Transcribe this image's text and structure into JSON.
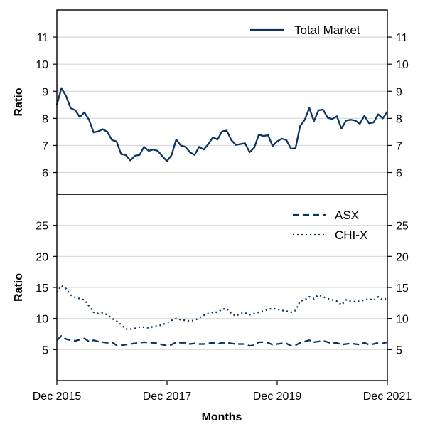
{
  "chart_data": {
    "type": "line",
    "xlabel": "Months",
    "x_ticks": [
      "Dec 2015",
      "Dec 2017",
      "Dec 2019",
      "Dec 2021"
    ],
    "x_months": [
      "Dec 2015",
      "Jan 2016",
      "Feb 2016",
      "Mar 2016",
      "Apr 2016",
      "May 2016",
      "Jun 2016",
      "Jul 2016",
      "Aug 2016",
      "Sep 2016",
      "Oct 2016",
      "Nov 2016",
      "Dec 2016",
      "Jan 2017",
      "Feb 2017",
      "Mar 2017",
      "Apr 2017",
      "May 2017",
      "Jun 2017",
      "Jul 2017",
      "Aug 2017",
      "Sep 2017",
      "Oct 2017",
      "Nov 2017",
      "Dec 2017",
      "Jan 2018",
      "Feb 2018",
      "Mar 2018",
      "Apr 2018",
      "May 2018",
      "Jun 2018",
      "Jul 2018",
      "Aug 2018",
      "Sep 2018",
      "Oct 2018",
      "Nov 2018",
      "Dec 2018",
      "Jan 2019",
      "Feb 2019",
      "Mar 2019",
      "Apr 2019",
      "May 2019",
      "Jun 2019",
      "Jul 2019",
      "Aug 2019",
      "Sep 2019",
      "Oct 2019",
      "Nov 2019",
      "Dec 2019",
      "Jan 2020",
      "Feb 2020",
      "Mar 2020",
      "Apr 2020",
      "May 2020",
      "Jun 2020",
      "Jul 2020",
      "Aug 2020",
      "Sep 2020",
      "Oct 2020",
      "Nov 2020",
      "Dec 2020",
      "Jan 2021",
      "Feb 2021",
      "Mar 2021",
      "Apr 2021",
      "May 2021",
      "Jun 2021",
      "Jul 2021",
      "Aug 2021",
      "Sep 2021",
      "Oct 2021",
      "Nov 2021",
      "Dec 2021"
    ],
    "grid": "horizontal",
    "panels": [
      {
        "ylabel": "Ratio",
        "ylim": [
          5.2,
          12
        ],
        "yticks": [
          6,
          7,
          8,
          9,
          10,
          11
        ],
        "legend_position": "top-right",
        "series": [
          {
            "name": "Total Market",
            "style": "solid",
            "color": "#0a3560",
            "values": [
              8.5,
              9.12,
              8.82,
              8.38,
              8.3,
              8.05,
              8.22,
              7.95,
              7.48,
              7.52,
              7.6,
              7.5,
              7.2,
              7.15,
              6.68,
              6.65,
              6.45,
              6.62,
              6.65,
              6.95,
              6.8,
              6.85,
              6.8,
              6.6,
              6.42,
              6.65,
              7.22,
              7.0,
              6.95,
              6.75,
              6.65,
              6.95,
              6.85,
              7.05,
              7.3,
              7.22,
              7.52,
              7.55,
              7.2,
              7.02,
              7.05,
              7.08,
              6.75,
              6.92,
              7.4,
              7.35,
              7.38,
              6.98,
              7.15,
              7.25,
              7.2,
              6.88,
              6.9,
              7.72,
              7.95,
              8.38,
              7.9,
              8.3,
              8.32,
              8.02,
              7.98,
              8.08,
              7.62,
              7.92,
              7.95,
              7.92,
              7.8,
              8.1,
              7.82,
              7.85,
              8.15,
              8.0,
              8.25
            ]
          }
        ]
      },
      {
        "ylabel": "Ratio",
        "ylim": [
          0,
          30
        ],
        "yticks": [
          5,
          10,
          15,
          20,
          25
        ],
        "legend_position": "top-right",
        "series": [
          {
            "name": "ASX",
            "style": "dashed",
            "color": "#0a3560",
            "values": [
              6.5,
              7.2,
              6.7,
              6.5,
              6.4,
              6.6,
              6.8,
              6.3,
              6.5,
              6.3,
              6.2,
              6.1,
              6.2,
              5.7,
              5.7,
              5.8,
              5.9,
              6.0,
              6.1,
              6.2,
              6.1,
              6.1,
              6.0,
              5.8,
              5.6,
              5.8,
              6.2,
              6.1,
              6.1,
              5.9,
              6.0,
              5.9,
              5.9,
              6.0,
              6.1,
              5.9,
              6.1,
              6.1,
              6.0,
              5.9,
              5.9,
              5.9,
              5.6,
              5.7,
              6.2,
              6.2,
              6.1,
              5.8,
              5.9,
              6.0,
              6.0,
              5.6,
              5.7,
              6.1,
              6.3,
              6.5,
              6.2,
              6.3,
              6.4,
              6.2,
              6.0,
              6.1,
              5.8,
              5.9,
              6.0,
              5.9,
              5.8,
              6.1,
              5.8,
              5.9,
              6.1,
              6.0,
              6.2
            ]
          },
          {
            "name": "CHI-X",
            "style": "dotted",
            "color": "#0a3560",
            "values": [
              14.2,
              15.3,
              14.8,
              13.8,
              13.4,
              13.2,
              13.0,
              12.0,
              11.0,
              10.8,
              10.9,
              10.6,
              10.0,
              9.6,
              9.0,
              8.3,
              8.3,
              8.4,
              8.6,
              8.6,
              8.5,
              8.7,
              8.8,
              9.0,
              9.3,
              9.7,
              10.0,
              9.8,
              9.7,
              9.6,
              9.7,
              10.1,
              10.5,
              10.8,
              11.0,
              11.0,
              11.5,
              11.6,
              10.8,
              10.4,
              10.8,
              10.9,
              10.6,
              10.8,
              11.0,
              11.2,
              11.5,
              11.6,
              11.5,
              11.3,
              11.2,
              11.0,
              11.3,
              12.8,
              13.0,
              13.5,
              13.2,
              13.8,
              13.5,
              13.2,
              13.0,
              12.8,
              12.2,
              13.0,
              12.8,
              12.7,
              12.8,
              13.0,
              13.2,
              12.9,
              13.5,
              13.0,
              13.3
            ]
          }
        ]
      }
    ]
  }
}
